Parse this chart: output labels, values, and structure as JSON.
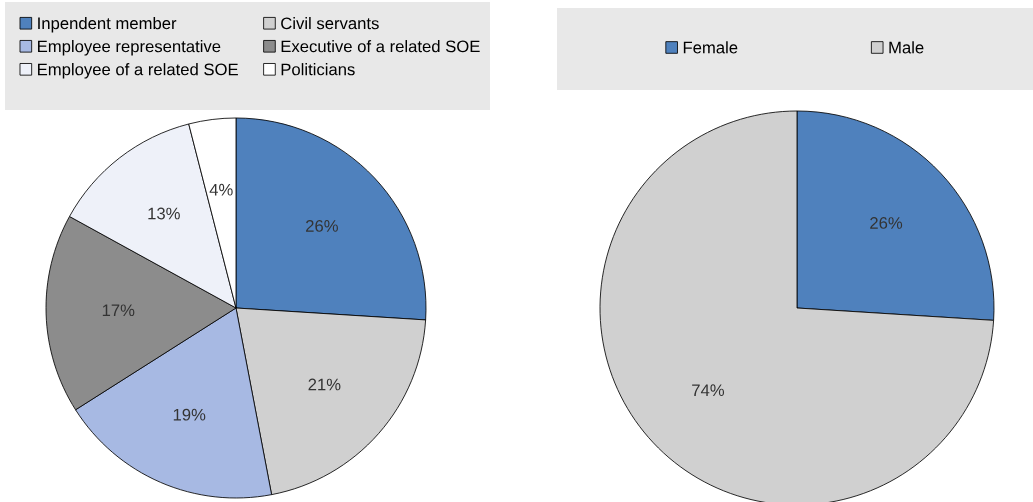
{
  "chart_data": [
    {
      "type": "pie",
      "categories": [
        "Inpendent member",
        "Civil servants",
        "Employee representative",
        "Executive of a related SOE",
        "Employee of a related SOE",
        "Politicians"
      ],
      "values": [
        26,
        21,
        19,
        17,
        13,
        4
      ],
      "colors": [
        "#4f81bd",
        "#d0d0d0",
        "#a7b9e3",
        "#8c8c8c",
        "#eef1f9",
        "#ffffff"
      ],
      "value_labels": [
        "26%",
        "21%",
        "19%",
        "17%",
        "13%",
        "4%"
      ],
      "legend": "top"
    },
    {
      "type": "pie",
      "categories": [
        "Female",
        "Male"
      ],
      "values": [
        26,
        74
      ],
      "colors": [
        "#4f81bd",
        "#d0d0d0"
      ],
      "value_labels": [
        "26%",
        "74%"
      ],
      "legend": "top"
    }
  ]
}
